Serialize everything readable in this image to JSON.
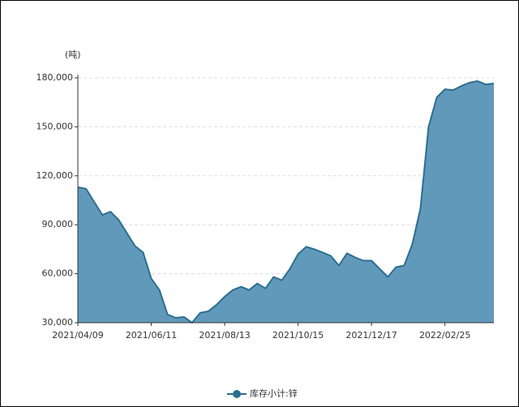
{
  "chart_data": {
    "type": "area",
    "y_axis_label": "(吨)",
    "categories": [
      "2021/04/09",
      null,
      null,
      null,
      null,
      null,
      null,
      null,
      null,
      "2021/06/11",
      null,
      null,
      null,
      null,
      null,
      null,
      null,
      null,
      "2021/08/13",
      null,
      null,
      null,
      null,
      null,
      null,
      null,
      null,
      "2021/10/15",
      null,
      null,
      null,
      null,
      null,
      null,
      null,
      null,
      "2021/12/17",
      null,
      null,
      null,
      null,
      null,
      null,
      null,
      null,
      "2022/02/25",
      null,
      null,
      null,
      null,
      null,
      null
    ],
    "series": [
      {
        "name": "库存小计:锌",
        "color": "#6199bb",
        "line_color": "#2c6e91",
        "values": [
          113000,
          112000,
          104000,
          96000,
          98000,
          93000,
          85000,
          77000,
          73000,
          57000,
          50000,
          35000,
          33000,
          33500,
          30000,
          36000,
          37000,
          41000,
          46000,
          50000,
          52000,
          50000,
          54000,
          51000,
          58000,
          56000,
          63000,
          72000,
          76500,
          75000,
          73000,
          71000,
          65000,
          72500,
          70000,
          68000,
          68000,
          63000,
          58000,
          64000,
          65000,
          78000,
          100000,
          150000,
          168000,
          173000,
          172500,
          175000,
          177000,
          178000,
          176000,
          176500
        ]
      }
    ],
    "ylim": [
      30000,
      180000
    ],
    "yticks": [
      {
        "value": 30000,
        "label": "30,000"
      },
      {
        "value": 60000,
        "label": "60,000"
      },
      {
        "value": 90000,
        "label": "90,000"
      },
      {
        "value": 120000,
        "label": "120,000"
      },
      {
        "value": 150000,
        "label": "150,000"
      },
      {
        "value": 180000,
        "label": "180,000"
      }
    ],
    "grid": true,
    "legend": "bottom"
  }
}
